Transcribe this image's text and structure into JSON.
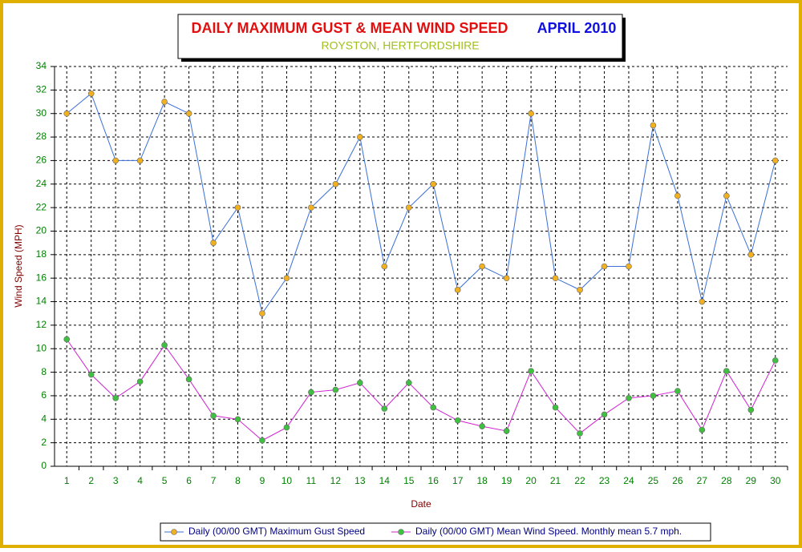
{
  "chart_data": {
    "type": "line",
    "title": "DAILY MAXIMUM GUST & MEAN WIND SPEED",
    "title_period": "APRIL 2010",
    "subtitle": "ROYSTON, HERTFORDSHIRE",
    "x_label": "Date",
    "y_label": "Wind Speed (MPH)",
    "categories": [
      "1",
      "2",
      "3",
      "4",
      "5",
      "6",
      "7",
      "8",
      "9",
      "10",
      "11",
      "12",
      "13",
      "14",
      "15",
      "16",
      "17",
      "18",
      "19",
      "20",
      "21",
      "22",
      "23",
      "24",
      "25",
      "26",
      "27",
      "28",
      "29",
      "30"
    ],
    "series": [
      {
        "name": "Daily (00/00 GMT) Maximum Gust Speed",
        "color": "#3a6fd8",
        "marker_color": "#f0b020",
        "values": [
          30,
          31.7,
          26,
          26,
          31,
          30,
          19,
          22,
          13,
          16,
          22,
          24,
          28,
          17,
          22,
          24,
          15,
          17,
          16,
          30,
          16,
          15,
          17,
          17,
          29,
          23,
          14,
          23,
          18,
          26
        ]
      },
      {
        "name": "Daily (00/00 GMT) Mean Wind Speed. Monthly mean 5.7 mph.",
        "color": "#d020d0",
        "marker_color": "#40c040",
        "values": [
          10.8,
          7.8,
          5.8,
          7.2,
          10.3,
          7.4,
          4.3,
          4.0,
          2.2,
          3.3,
          6.3,
          6.5,
          7.1,
          4.9,
          7.1,
          5.0,
          3.9,
          3.4,
          3.0,
          8.1,
          5.0,
          2.8,
          4.4,
          5.8,
          6.0,
          6.4,
          3.1,
          8.1,
          4.8,
          9.0
        ]
      }
    ],
    "ylim": [
      0,
      34
    ],
    "yticks": [
      0,
      2,
      4,
      6,
      8,
      10,
      12,
      14,
      16,
      18,
      20,
      22,
      24,
      26,
      28,
      30,
      32,
      34
    ],
    "grid": true
  }
}
